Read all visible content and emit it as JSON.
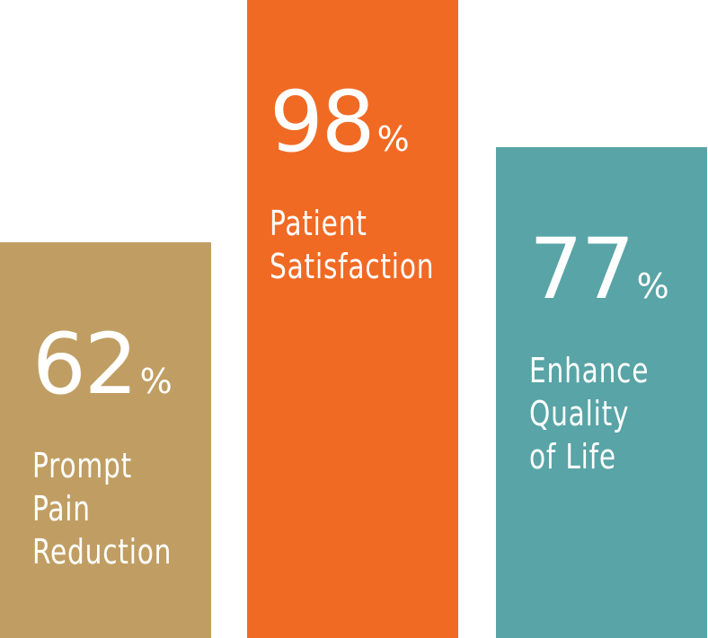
{
  "chart_data": {
    "type": "bar",
    "categories": [
      "Prompt Pain Reduction",
      "Patient Satisfaction",
      "Enhance Quality of Life"
    ],
    "values": [
      62,
      98,
      77
    ],
    "unit": "%",
    "ylim": [
      0,
      100
    ],
    "grid": false,
    "bars": [
      {
        "value": 62,
        "value_text": "62",
        "unit": "%",
        "label_lines": [
          "Prompt",
          "Pain",
          "Reduction"
        ],
        "color": "#C09E63"
      },
      {
        "value": 98,
        "value_text": "98",
        "unit": "%",
        "label_lines": [
          "Patient",
          "Satisfaction"
        ],
        "color": "#F06A24"
      },
      {
        "value": 77,
        "value_text": "77",
        "unit": "%",
        "label_lines": [
          "Enhance",
          "Quality",
          "of Life"
        ],
        "color": "#58A4A6"
      }
    ]
  }
}
